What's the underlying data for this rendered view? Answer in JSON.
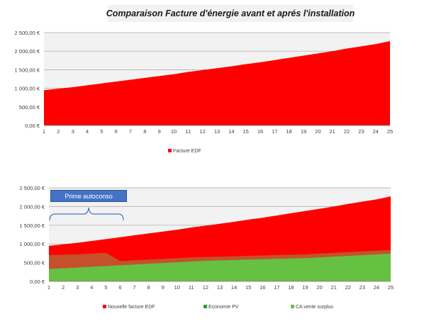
{
  "title": "Comparaison Facture d'énergie avant et aprés l'installation",
  "annotation": "Prime autoconso",
  "colors": {
    "facture": "#ff0000",
    "nouvelle": "#ff0000",
    "economie": "#339933",
    "surplus": "#66c043",
    "overlay": "#e0432a",
    "plot_bg": "#f2f2f2",
    "grid": "#a6a6a6"
  },
  "chart_data": [
    {
      "type": "area",
      "title": "",
      "x": [
        1,
        2,
        3,
        4,
        5,
        6,
        7,
        8,
        9,
        10,
        11,
        12,
        13,
        14,
        15,
        16,
        17,
        18,
        19,
        20,
        21,
        22,
        23,
        24,
        25
      ],
      "ylim": [
        0,
        2500
      ],
      "yticks": [
        "0,00 €",
        "500,00 €",
        "1 000,00 €",
        "1 500,00 €",
        "2 000,00 €",
        "2 500,00 €"
      ],
      "legend_position": "bottom-left",
      "grid": true,
      "series": [
        {
          "name": "Facture EDF",
          "values": [
            950,
            990,
            1030,
            1080,
            1130,
            1180,
            1230,
            1280,
            1330,
            1380,
            1440,
            1490,
            1540,
            1590,
            1650,
            1700,
            1760,
            1820,
            1880,
            1940,
            2000,
            2070,
            2130,
            2190,
            2270
          ]
        }
      ]
    },
    {
      "type": "area",
      "title": "",
      "x": [
        1,
        2,
        3,
        4,
        5,
        6,
        7,
        8,
        9,
        10,
        11,
        12,
        13,
        14,
        15,
        16,
        17,
        18,
        19,
        20,
        21,
        22,
        23,
        24,
        25
      ],
      "ylim": [
        0,
        2500
      ],
      "yticks": [
        "0,00 €",
        "500,00 €",
        "1 000,00 €",
        "1 500,00 €",
        "2 000,00 €",
        "2 500,00 €"
      ],
      "legend_position": "bottom",
      "grid": true,
      "series": [
        {
          "name": "Nouvelle facture EDF",
          "values": [
            950,
            990,
            1030,
            1080,
            1130,
            1180,
            1230,
            1280,
            1330,
            1380,
            1440,
            1490,
            1540,
            1590,
            1650,
            1700,
            1760,
            1820,
            1880,
            1940,
            2000,
            2070,
            2130,
            2190,
            2270
          ]
        },
        {
          "name": "Economie PV",
          "values": [
            700,
            710,
            720,
            740,
            760,
            540,
            560,
            580,
            600,
            620,
            640,
            650,
            660,
            670,
            680,
            690,
            700,
            710,
            720,
            740,
            760,
            780,
            800,
            820,
            840
          ]
        },
        {
          "name": "CA vente surplus",
          "values": [
            330,
            350,
            370,
            390,
            410,
            430,
            450,
            470,
            490,
            510,
            530,
            550,
            560,
            570,
            580,
            590,
            600,
            610,
            620,
            640,
            660,
            680,
            700,
            720,
            740
          ]
        }
      ]
    }
  ]
}
